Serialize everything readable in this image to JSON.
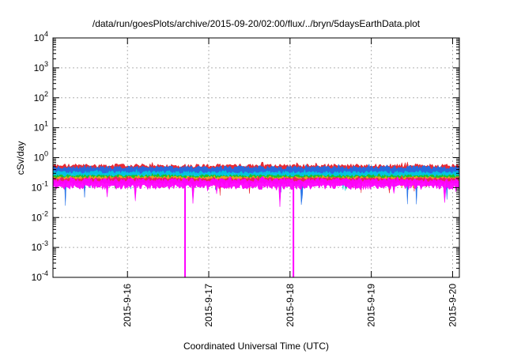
{
  "chart_data": {
    "type": "area",
    "title": "/data/run/goesPlots/archive/2015-09-20/02:00/flux/../bryn/5daysEarthData.plot",
    "xlabel": "Coordinated Universal Time (UTC)",
    "ylabel": "cSv/day",
    "yscale": "log",
    "ylim": [
      0.0001,
      10000
    ],
    "xlim": [
      "2015-09-15 02:00",
      "2015-09-20 02:00"
    ],
    "grid": true,
    "y_ticks": [
      {
        "base": "10",
        "exp": "4"
      },
      {
        "base": "10",
        "exp": "3"
      },
      {
        "base": "10",
        "exp": "2"
      },
      {
        "base": "10",
        "exp": "1"
      },
      {
        "base": "10",
        "exp": "0"
      },
      {
        "base": "10",
        "exp": "-1"
      },
      {
        "base": "10",
        "exp": "-2"
      },
      {
        "base": "10",
        "exp": "-3"
      },
      {
        "base": "10",
        "exp": "-4"
      }
    ],
    "y_tick_values": [
      10000,
      1000,
      100,
      10,
      1,
      0.1,
      0.01,
      0.001,
      0.0001
    ],
    "x_ticks": [
      "2015-9-16",
      "2015-9-17",
      "2015-9-18",
      "2015-9-19",
      "2015-9-20"
    ],
    "x_tick_values": [
      "2015-09-16 00:00",
      "2015-09-17 00:00",
      "2015-09-18 00:00",
      "2015-09-19 00:00",
      "2015-09-20 00:00"
    ],
    "series": [
      {
        "color": "#e8202a",
        "level": 0.42,
        "spread": 0.16
      },
      {
        "color": "#1e6ee8",
        "level": 0.36,
        "spread": 0.14
      },
      {
        "color": "#00c8e0",
        "level": 0.26,
        "spread": 0.08
      },
      {
        "color": "#20c020",
        "level": 0.21,
        "spread": 0.05
      },
      {
        "color": "#f0a020",
        "level": 0.19,
        "spread": 0.04
      },
      {
        "color": "#e8205a",
        "level": 0.17,
        "spread": 0.04
      },
      {
        "color": "#ff00ff",
        "level": 0.14,
        "spread": 0.05
      }
    ],
    "dropouts": [
      {
        "series": 6,
        "time": "2015-09-16 17:00",
        "value": 0.0001
      },
      {
        "series": 6,
        "time": "2015-09-18 01:00",
        "value": 0.0001
      }
    ]
  }
}
